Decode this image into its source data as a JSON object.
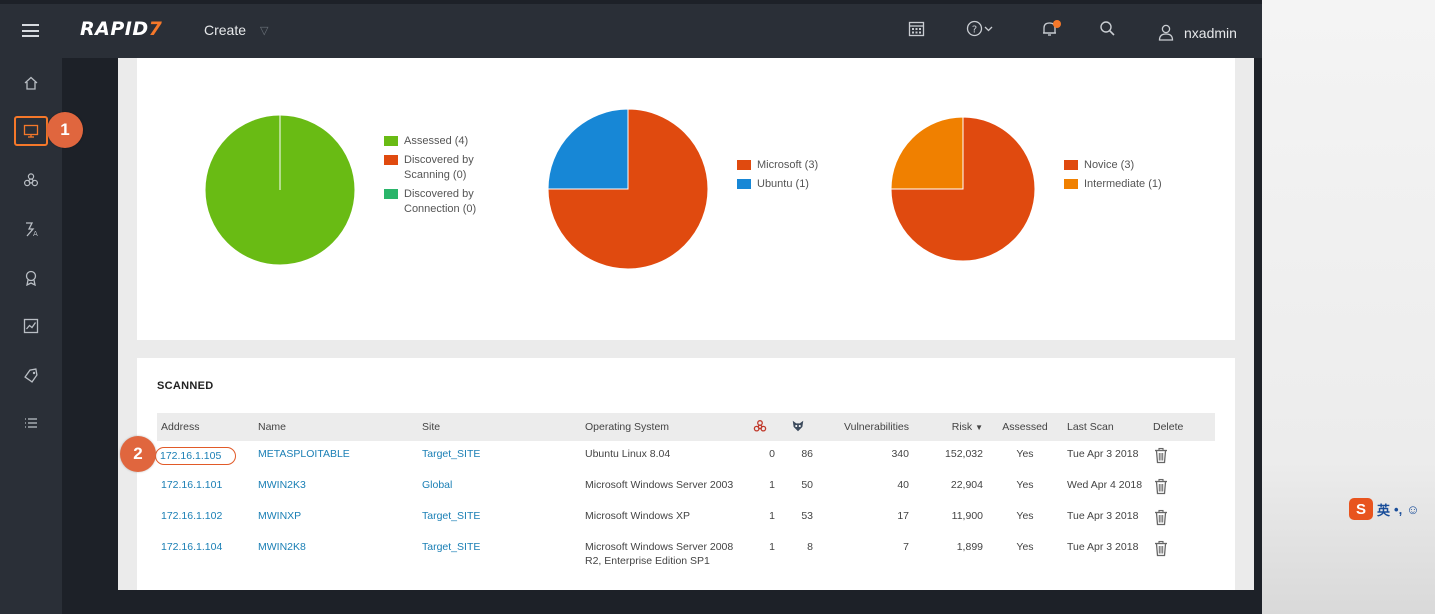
{
  "header": {
    "logo_text": "RAPID",
    "logo_mark": "7",
    "create_label": "Create",
    "user_name": "nxadmin"
  },
  "colors": {
    "accent": "#f5782a",
    "assessed": "#69bb14",
    "discovered_scanning": "#e04a0f",
    "discovered_connection": "#2ab56a",
    "microsoft": "#e04a0f",
    "ubuntu": "#1787d6",
    "novice": "#e04a0f",
    "intermediate": "#f08000"
  },
  "charts": {
    "assessment": [
      {
        "label": "Assessed (4)",
        "value": 4
      },
      {
        "label": "Discovered by Scanning (0)",
        "value": 0
      },
      {
        "label": "Discovered by Connection (0)",
        "value": 0
      }
    ],
    "os": [
      {
        "label": "Microsoft (3)",
        "value": 3
      },
      {
        "label": "Ubuntu (1)",
        "value": 1
      }
    ],
    "skill": [
      {
        "label": "Novice (3)",
        "value": 3
      },
      {
        "label": "Intermediate (1)",
        "value": 1
      }
    ]
  },
  "scanned": {
    "title": "SCANNED",
    "columns": {
      "address": "Address",
      "name": "Name",
      "site": "Site",
      "os": "Operating System",
      "vulnerabilities": "Vulnerabilities",
      "risk": "Risk",
      "assessed": "Assessed",
      "last_scan": "Last Scan",
      "delete": "Delete"
    },
    "rows": [
      {
        "address": "172.16.1.105",
        "name": "METASPLOITABLE",
        "site": "Target_SITE",
        "os": "Ubuntu Linux 8.04",
        "malware": "0",
        "exploits": "86",
        "vulns": "340",
        "risk": "152,032",
        "assessed": "Yes",
        "last_scan": "Tue Apr 3 2018"
      },
      {
        "address": "172.16.1.101",
        "name": "MWIN2K3",
        "site": "Global",
        "os": "Microsoft Windows Server 2003",
        "malware": "1",
        "exploits": "50",
        "vulns": "40",
        "risk": "22,904",
        "assessed": "Yes",
        "last_scan": "Wed Apr 4 2018"
      },
      {
        "address": "172.16.1.102",
        "name": "MWINXP",
        "site": "Target_SITE",
        "os": "Microsoft Windows XP",
        "malware": "1",
        "exploits": "53",
        "vulns": "17",
        "risk": "11,900",
        "assessed": "Yes",
        "last_scan": "Tue Apr 3 2018"
      },
      {
        "address": "172.16.1.104",
        "name": "MWIN2K8",
        "site": "Target_SITE",
        "os": "Microsoft Windows Server 2008 R2, Enterprise Edition SP1",
        "malware": "1",
        "exploits": "8",
        "vulns": "7",
        "risk": "1,899",
        "assessed": "Yes",
        "last_scan": "Tue Apr 3 2018"
      }
    ]
  },
  "annotations": {
    "badge1": "1",
    "badge2": "2"
  },
  "ime": {
    "lang": "英",
    "punct": "•,",
    "emoji": "☺"
  }
}
